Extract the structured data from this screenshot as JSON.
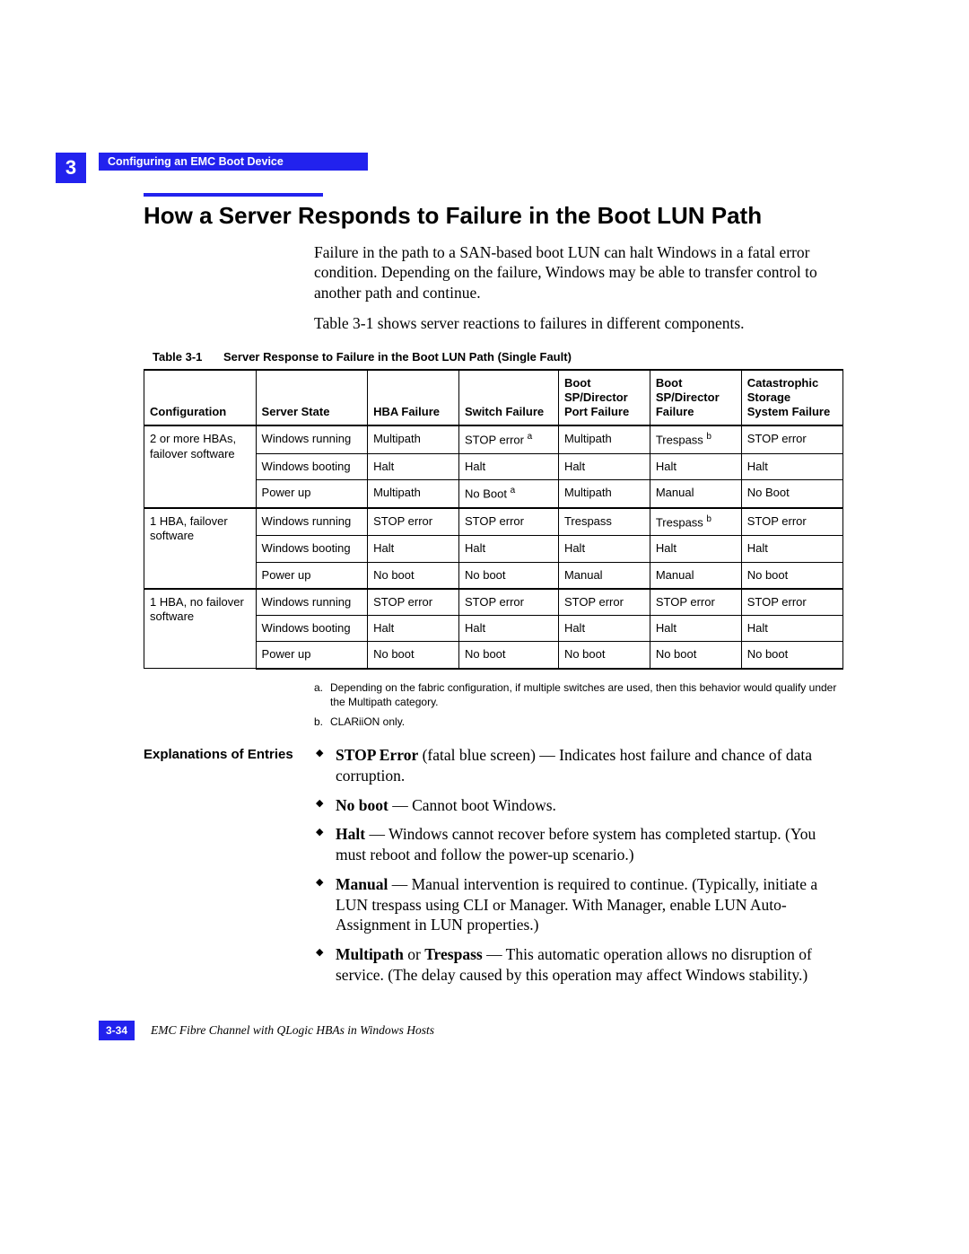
{
  "chapter_number": "3",
  "header_bar": "Configuring an EMC Boot Device",
  "section_title": "How a Server Responds to Failure in the Boot LUN Path",
  "intro_p1": "Failure in the path to a SAN-based boot LUN can halt Windows in a fatal error condition. Depending on the failure, Windows may be able to transfer control to another path and continue.",
  "intro_p2": "Table 3-1 shows server reactions to failures in different components.",
  "table": {
    "caption_label": "Table 3-1",
    "caption_text": "Server Response to Failure in the Boot LUN Path (Single Fault)",
    "columns": [
      "Configuration",
      "Server State",
      "HBA Failure",
      "Switch Failure",
      "Boot SP/Director Port Failure",
      "Boot SP/Director Failure",
      "Catastrophic Storage System Failure"
    ],
    "header_html": [
      "Configuration",
      "Server State",
      "HBA Failure",
      "Switch Failure",
      "Boot<br>SP/Director<br>Port Failure",
      "Boot<br>SP/Director<br>Failure",
      "Catastrophic<br>Storage<br>System Failure"
    ],
    "groups": [
      {
        "config": "2 or more HBAs, failover software",
        "rows": [
          [
            "Windows running",
            "Multipath",
            "STOP error <sup>a</sup>",
            "Multipath",
            "Trespass <sup>b</sup>",
            "STOP error"
          ],
          [
            "Windows booting",
            "Halt",
            "Halt",
            "Halt",
            "Halt",
            "Halt"
          ],
          [
            "Power up",
            "Multipath",
            "No Boot <sup>a</sup>",
            "Multipath",
            "Manual",
            "No Boot"
          ]
        ]
      },
      {
        "config": "1 HBA, failover software",
        "rows": [
          [
            "Windows running",
            "STOP error",
            "STOP error",
            "Trespass",
            "Trespass <sup>b</sup>",
            "STOP error"
          ],
          [
            "Windows booting",
            "Halt",
            "Halt",
            "Halt",
            "Halt",
            "Halt"
          ],
          [
            "Power up",
            "No boot",
            "No boot",
            "Manual",
            "Manual",
            "No boot"
          ]
        ]
      },
      {
        "config": "1 HBA, no failover software",
        "rows": [
          [
            "Windows running",
            "STOP error",
            "STOP error",
            "STOP error",
            "STOP error",
            "STOP error"
          ],
          [
            "Windows booting",
            "Halt",
            "Halt",
            "Halt",
            "Halt",
            "Halt"
          ],
          [
            "Power up",
            "No boot",
            "No boot",
            "No boot",
            "No boot",
            "No boot"
          ]
        ]
      }
    ]
  },
  "footnotes": [
    {
      "mark": "a.",
      "text": "Depending on the fabric configuration, if multiple switches are used, then this behavior would qualify under the Multipath category."
    },
    {
      "mark": "b.",
      "text": "CLARiiON only."
    }
  ],
  "explanations_label": "Explanations of Entries",
  "explanations": [
    {
      "term": "STOP Error",
      "extra": " (fatal blue screen) — Indicates host failure and chance of data corruption."
    },
    {
      "term": "No boot",
      "extra": " — Cannot boot Windows."
    },
    {
      "term": "Halt",
      "extra": " — Windows cannot recover before system has completed startup. (You must reboot and follow the power-up scenario.)"
    },
    {
      "term": "Manual",
      "extra": " — Manual intervention is required to continue. (Typically, initiate a LUN trespass using CLI or Manager. With Manager, enable LUN Auto-Assignment in LUN properties.)"
    },
    {
      "term": "Multipath or Trespass",
      "term_html": "Multipath</b> or <b>Trespass",
      "extra": " — This automatic operation allows no disruption of service. (The delay caused by this operation may affect Windows stability.)"
    }
  ],
  "page_number": "3-34",
  "doc_title": "EMC Fibre Channel with QLogic HBAs in Windows Hosts",
  "colors": {
    "brand_blue": "#2222ee",
    "text": "#000000",
    "background": "#ffffff"
  },
  "typography": {
    "heading_family": "Arial",
    "body_family": "Palatino",
    "heading_size_pt": 20,
    "body_size_pt": 13,
    "table_size_pt": 10,
    "caption_size_pt": 10
  }
}
